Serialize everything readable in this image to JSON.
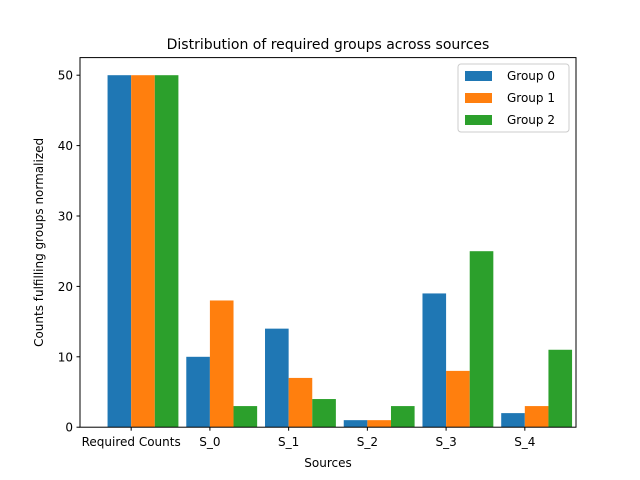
{
  "chart_data": {
    "type": "bar",
    "title": "Distribution of required groups across sources",
    "xlabel": "Sources",
    "ylabel": "Counts fulfilling groups normalized",
    "categories": [
      "Required Counts",
      "S_0",
      "S_1",
      "S_2",
      "S_3",
      "S_4"
    ],
    "series": [
      {
        "name": "Group 0",
        "color": "#1f77b4",
        "values": [
          50,
          10,
          14,
          1,
          19,
          2
        ]
      },
      {
        "name": "Group 1",
        "color": "#ff7f0e",
        "values": [
          50,
          18,
          7,
          1,
          8,
          3
        ]
      },
      {
        "name": "Group 2",
        "color": "#2ca02c",
        "values": [
          50,
          3,
          4,
          3,
          25,
          11
        ]
      }
    ],
    "ylim": [
      0,
      52.5
    ],
    "yticks": [
      0,
      10,
      20,
      30,
      40,
      50
    ],
    "grid": false,
    "legend_position": "top-right"
  }
}
